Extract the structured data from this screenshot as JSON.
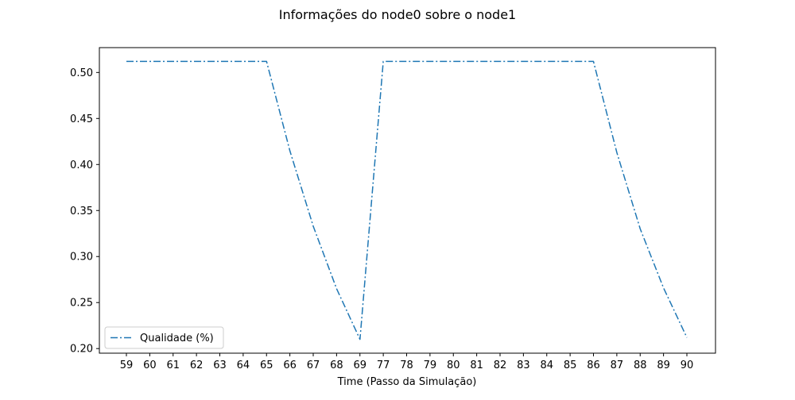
{
  "chart_data": {
    "type": "line",
    "title": "Informações do node0 sobre o node1",
    "xlabel": "Time (Passo da Simulação)",
    "ylabel": "",
    "categories": [
      "59",
      "60",
      "61",
      "62",
      "63",
      "64",
      "65",
      "66",
      "67",
      "68",
      "69",
      "77",
      "78",
      "79",
      "80",
      "81",
      "82",
      "83",
      "84",
      "85",
      "86",
      "87",
      "88",
      "89",
      "90"
    ],
    "series": [
      {
        "name": "Qualidade (%)",
        "color": "#1f77b4",
        "line_style": "dashdot",
        "values": [
          0.512,
          0.512,
          0.512,
          0.512,
          0.512,
          0.512,
          0.512,
          0.415,
          0.333,
          0.265,
          0.21,
          0.512,
          0.512,
          0.512,
          0.512,
          0.512,
          0.512,
          0.512,
          0.512,
          0.512,
          0.512,
          0.413,
          0.33,
          0.266,
          0.212
        ]
      }
    ],
    "yticks": [
      "0.20",
      "0.25",
      "0.30",
      "0.35",
      "0.40",
      "0.45",
      "0.50"
    ],
    "ylim": [
      0.195,
      0.527
    ],
    "grid": false,
    "legend_position": "lower-left"
  }
}
